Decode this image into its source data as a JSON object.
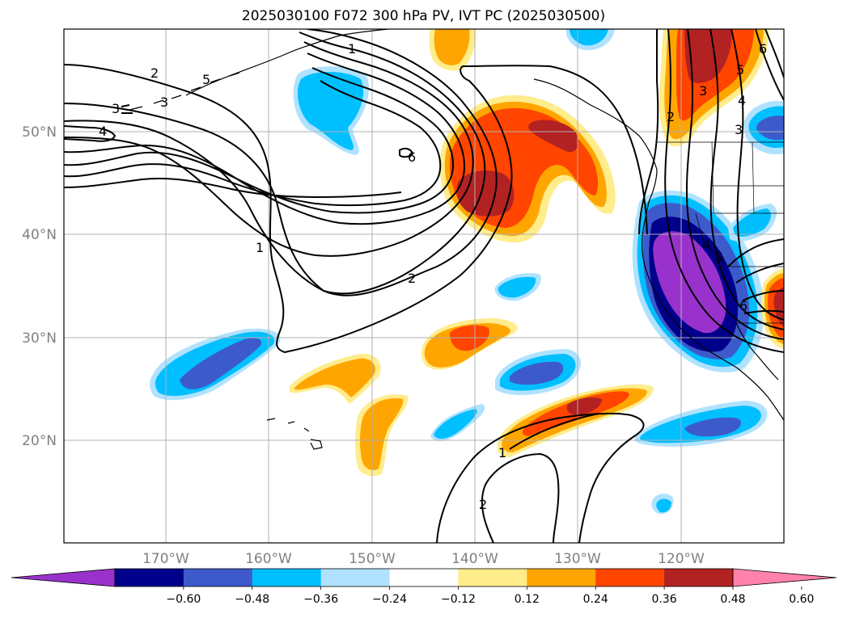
{
  "title": "2025030100 F072 300 hPa PV, IVT PC (2025030500)",
  "map": {
    "lon_labels": [
      "170°W",
      "160°W",
      "150°W",
      "140°W",
      "130°W",
      "120°W"
    ],
    "lat_labels": [
      "50°N",
      "40°N",
      "30°N",
      "20°N"
    ],
    "grid": true,
    "contour_labels": [
      "1",
      "2",
      "3",
      "4",
      "5",
      "6",
      "1",
      "2",
      "3",
      "4",
      "5",
      "6",
      "1",
      "2",
      "3",
      "4",
      "5",
      "6"
    ]
  },
  "colorbar": {
    "extend": "both",
    "ticks": [
      "−0.60",
      "−0.48",
      "−0.36",
      "−0.24",
      "−0.12",
      "0.12",
      "0.24",
      "0.36",
      "0.48",
      "0.60"
    ],
    "colors": [
      "#9932cc",
      "#00008b",
      "#3d5acb",
      "#00bfff",
      "#b0e2ff",
      "#ffffff",
      "#ffec8b",
      "#ffa500",
      "#ff4500",
      "#b22222",
      "#ff82ab"
    ]
  }
}
